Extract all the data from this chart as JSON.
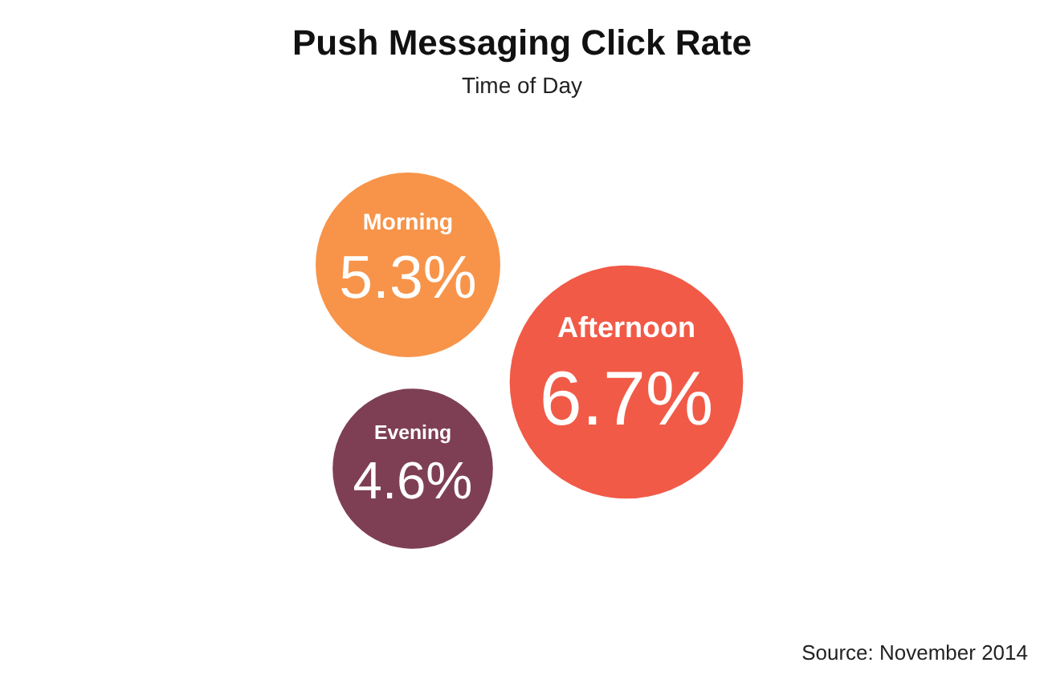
{
  "chart_data": {
    "type": "other",
    "title": "Push Messaging Click Rate",
    "subtitle": "Time of Day",
    "categories": [
      "Morning",
      "Afternoon",
      "Evening"
    ],
    "values": [
      5.3,
      6.7,
      4.6
    ],
    "value_labels": [
      "5.3%",
      "6.7%",
      "4.6%"
    ],
    "colors": [
      "#f7944a",
      "#f15a47",
      "#7e3f55"
    ],
    "annotations": [
      "Source: November 2014"
    ]
  }
}
